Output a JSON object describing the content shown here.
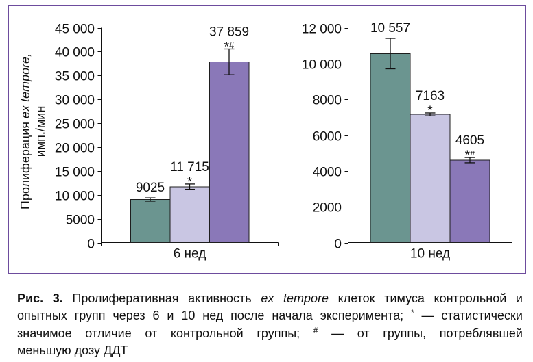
{
  "chart_data": [
    {
      "type": "bar",
      "categories": [
        "6 нед"
      ],
      "ylabel": {
        "lead": "Пролиферация",
        "term": "ex tempore,",
        "unit": "имп./мин"
      },
      "ylim": [
        0,
        45000
      ],
      "yticks": [
        0,
        5000,
        10000,
        15000,
        20000,
        25000,
        30000,
        35000,
        40000,
        45000
      ],
      "ytick_labels": [
        "0",
        "5000",
        "10 000",
        "15 000",
        "20 000",
        "25 000",
        "30 000",
        "35 000",
        "40 000",
        "45 000"
      ],
      "grid": false,
      "legend": "none",
      "series": [
        {
          "values": [
            9025
          ],
          "labels": [
            "9025"
          ],
          "errors": [
            350
          ],
          "color": "#6b9590"
        },
        {
          "values": [
            11715
          ],
          "labels": [
            "11 715"
          ],
          "errors": [
            550
          ],
          "marker": "*",
          "color": "#c9c6e3"
        },
        {
          "values": [
            37859
          ],
          "labels": [
            "37 859"
          ],
          "errors": [
            2700
          ],
          "marker": "*",
          "marker_sup": "#",
          "color": "#8a78b8"
        }
      ]
    },
    {
      "type": "bar",
      "categories": [
        "10 нед"
      ],
      "ylim": [
        0,
        12000
      ],
      "yticks": [
        0,
        2000,
        4000,
        6000,
        8000,
        10000,
        12000
      ],
      "ytick_labels": [
        "0",
        "2000",
        "4000",
        "6000",
        "8000",
        "10 000",
        "12 000"
      ],
      "grid": false,
      "legend": "none",
      "series": [
        {
          "values": [
            10557
          ],
          "labels": [
            "10 557"
          ],
          "errors": [
            850
          ],
          "color": "#6b9590"
        },
        {
          "values": [
            7163
          ],
          "labels": [
            "7163"
          ],
          "errors": [
            80
          ],
          "marker": "*",
          "color": "#c9c6e3"
        },
        {
          "values": [
            4605
          ],
          "labels": [
            "4605"
          ],
          "errors": [
            150
          ],
          "marker": "*",
          "marker_sup": "#",
          "color": "#8a78b8"
        }
      ]
    }
  ],
  "caption": {
    "figure_label": "Рис. 3.",
    "l1_text": "Пролиферативная активность",
    "l1_term": "ex tempore",
    "l1_rest": "клеток тимуса контрольной и",
    "l2_text": "опытных групп через 6 и 10 нед после начала эксперимента;",
    "l2_mark": "*",
    "l2_rest": "— статистически",
    "l3_text": "значимое отличие от контрольной группы;",
    "l3_mark": "#",
    "l3_rest": "— от группы, потреблявшей",
    "l4_text": "меньшую дозу ДДТ"
  }
}
